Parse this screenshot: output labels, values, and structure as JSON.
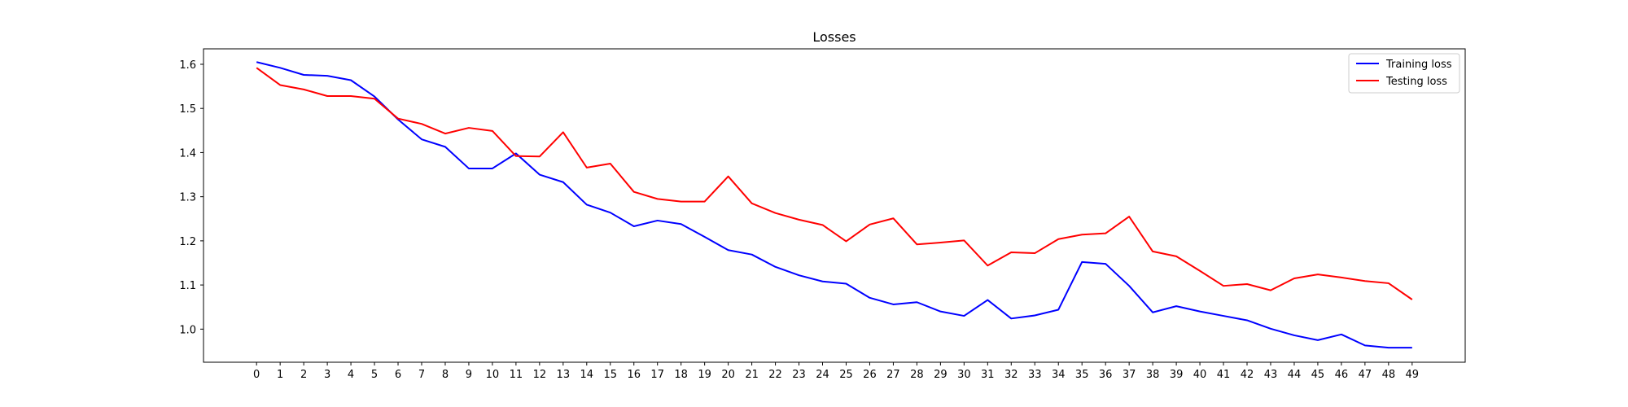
{
  "chart_data": {
    "type": "line",
    "title": "Losses",
    "xlabel": "",
    "ylabel": "",
    "x": [
      0,
      1,
      2,
      3,
      4,
      5,
      6,
      7,
      8,
      9,
      10,
      11,
      12,
      13,
      14,
      15,
      16,
      17,
      18,
      19,
      20,
      21,
      22,
      23,
      24,
      25,
      26,
      27,
      28,
      29,
      30,
      31,
      32,
      33,
      34,
      35,
      36,
      37,
      38,
      39,
      40,
      41,
      42,
      43,
      44,
      45,
      46,
      47,
      48,
      49
    ],
    "xlim": [
      -2.25,
      51.25
    ],
    "ylim": [
      0.925,
      1.635
    ],
    "yticks": [
      1.0,
      1.1,
      1.2,
      1.3,
      1.4,
      1.5,
      1.6
    ],
    "ytick_labels": [
      "1.0",
      "1.1",
      "1.2",
      "1.3",
      "1.4",
      "1.5",
      "1.6"
    ],
    "grid": false,
    "legend_position": "top-right",
    "series": [
      {
        "name": "Training loss",
        "color": "#0000ff",
        "values": [
          1.605,
          1.592,
          1.576,
          1.574,
          1.564,
          1.527,
          1.475,
          1.43,
          1.413,
          1.364,
          1.364,
          1.398,
          1.35,
          1.333,
          1.282,
          1.264,
          1.233,
          1.246,
          1.238,
          1.209,
          1.179,
          1.169,
          1.141,
          1.122,
          1.108,
          1.103,
          1.071,
          1.056,
          1.061,
          1.04,
          1.03,
          1.066,
          1.024,
          1.031,
          1.044,
          1.152,
          1.148,
          1.098,
          1.038,
          1.052,
          1.04,
          1.03,
          1.02,
          1.001,
          0.986,
          0.975,
          0.988,
          0.963,
          0.958,
          0.958
        ]
      },
      {
        "name": "Testing loss",
        "color": "#ff0000",
        "values": [
          1.592,
          1.553,
          1.543,
          1.528,
          1.528,
          1.522,
          1.477,
          1.465,
          1.443,
          1.456,
          1.449,
          1.392,
          1.391,
          1.446,
          1.366,
          1.375,
          1.311,
          1.295,
          1.289,
          1.289,
          1.346,
          1.285,
          1.263,
          1.248,
          1.236,
          1.199,
          1.237,
          1.251,
          1.192,
          1.196,
          1.201,
          1.144,
          1.174,
          1.172,
          1.204,
          1.214,
          1.217,
          1.255,
          1.176,
          1.165,
          1.132,
          1.098,
          1.102,
          1.088,
          1.115,
          1.124,
          1.117,
          1.109,
          1.104,
          1.067
        ]
      }
    ]
  }
}
